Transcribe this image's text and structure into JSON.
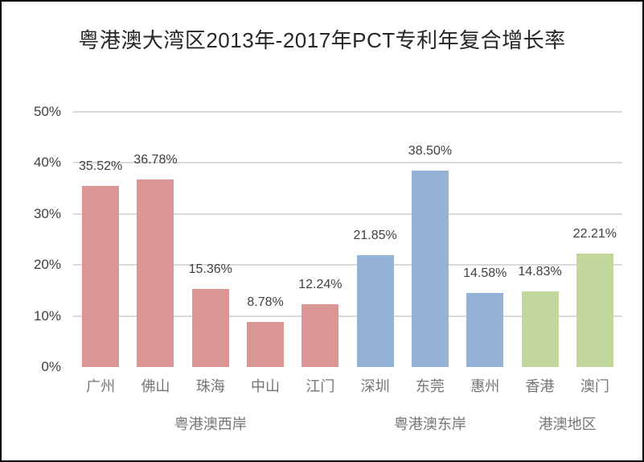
{
  "chart_data": {
    "type": "bar",
    "title": "粤港澳大湾区2013年-2017年PCT专利年复合增长率",
    "categories": [
      "广州",
      "佛山",
      "珠海",
      "中山",
      "江门",
      "深圳",
      "东莞",
      "惠州",
      "香港",
      "澳门"
    ],
    "values": [
      35.52,
      36.78,
      15.36,
      8.78,
      12.24,
      21.85,
      38.5,
      14.58,
      14.83,
      22.21
    ],
    "value_labels": [
      "35.52%",
      "36.78%",
      "15.36%",
      "8.78%",
      "12.24%",
      "21.85%",
      "38.50%",
      "14.58%",
      "14.83%",
      "22.21%"
    ],
    "groups": [
      {
        "label": "粤港澳西岸",
        "start": 0,
        "end": 4,
        "color": "#D99694"
      },
      {
        "label": "粤港澳东岸",
        "start": 5,
        "end": 7,
        "color": "#95B3D7"
      },
      {
        "label": "港澳地区",
        "start": 8,
        "end": 9,
        "color": "#C3D69B"
      }
    ],
    "xlabel": "",
    "ylabel": "",
    "ylim": [
      0,
      50
    ],
    "yticks": [
      "0%",
      "10%",
      "20%",
      "30%",
      "40%",
      "50%"
    ],
    "grid": true,
    "legend": false
  },
  "style": {
    "background": "#FFFFFF",
    "frame_border_color": "#000000",
    "gridline_color": "#D9D9D9",
    "title_color": "#262626",
    "axis_label_color": "#404040",
    "value_label_color": "#404040",
    "category_label_color": "#757575",
    "group_label_color": "#757575"
  }
}
